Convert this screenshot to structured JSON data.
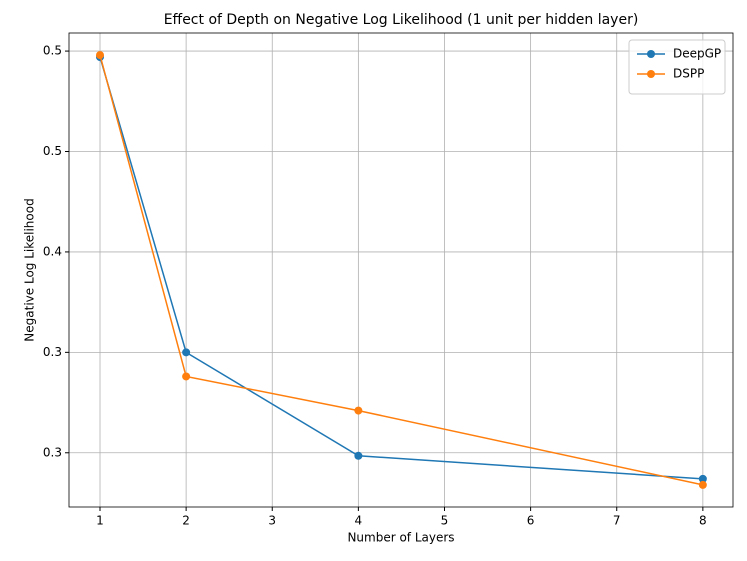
{
  "chart_data": {
    "type": "line",
    "title": "Effect of Depth on Negative Log Likelihood (1 unit per hidden layer)",
    "xlabel": "Number of Layers",
    "ylabel": "Negative Log Likelihood",
    "x": [
      1,
      2,
      4,
      8
    ],
    "series": [
      {
        "name": "DeepGP",
        "color": "#1f77b4",
        "values": [
          0.497,
          0.35,
          0.2985,
          0.287
        ]
      },
      {
        "name": "DSPP",
        "color": "#ff7f0e",
        "values": [
          0.498,
          0.338,
          0.321,
          0.284
        ]
      }
    ],
    "xlim": [
      0.64,
      8.35
    ],
    "xticks": [
      1,
      2,
      3,
      4,
      5,
      6,
      7,
      8
    ],
    "ylim": [
      0.273,
      0.509
    ],
    "yticks": [
      0.3,
      {
        "value": 0.35,
        "label": "0.3"
      },
      0.4,
      {
        "value": 0.45,
        "label": "0.5"
      },
      0.5
    ],
    "grid": true,
    "legend": "upper right"
  }
}
